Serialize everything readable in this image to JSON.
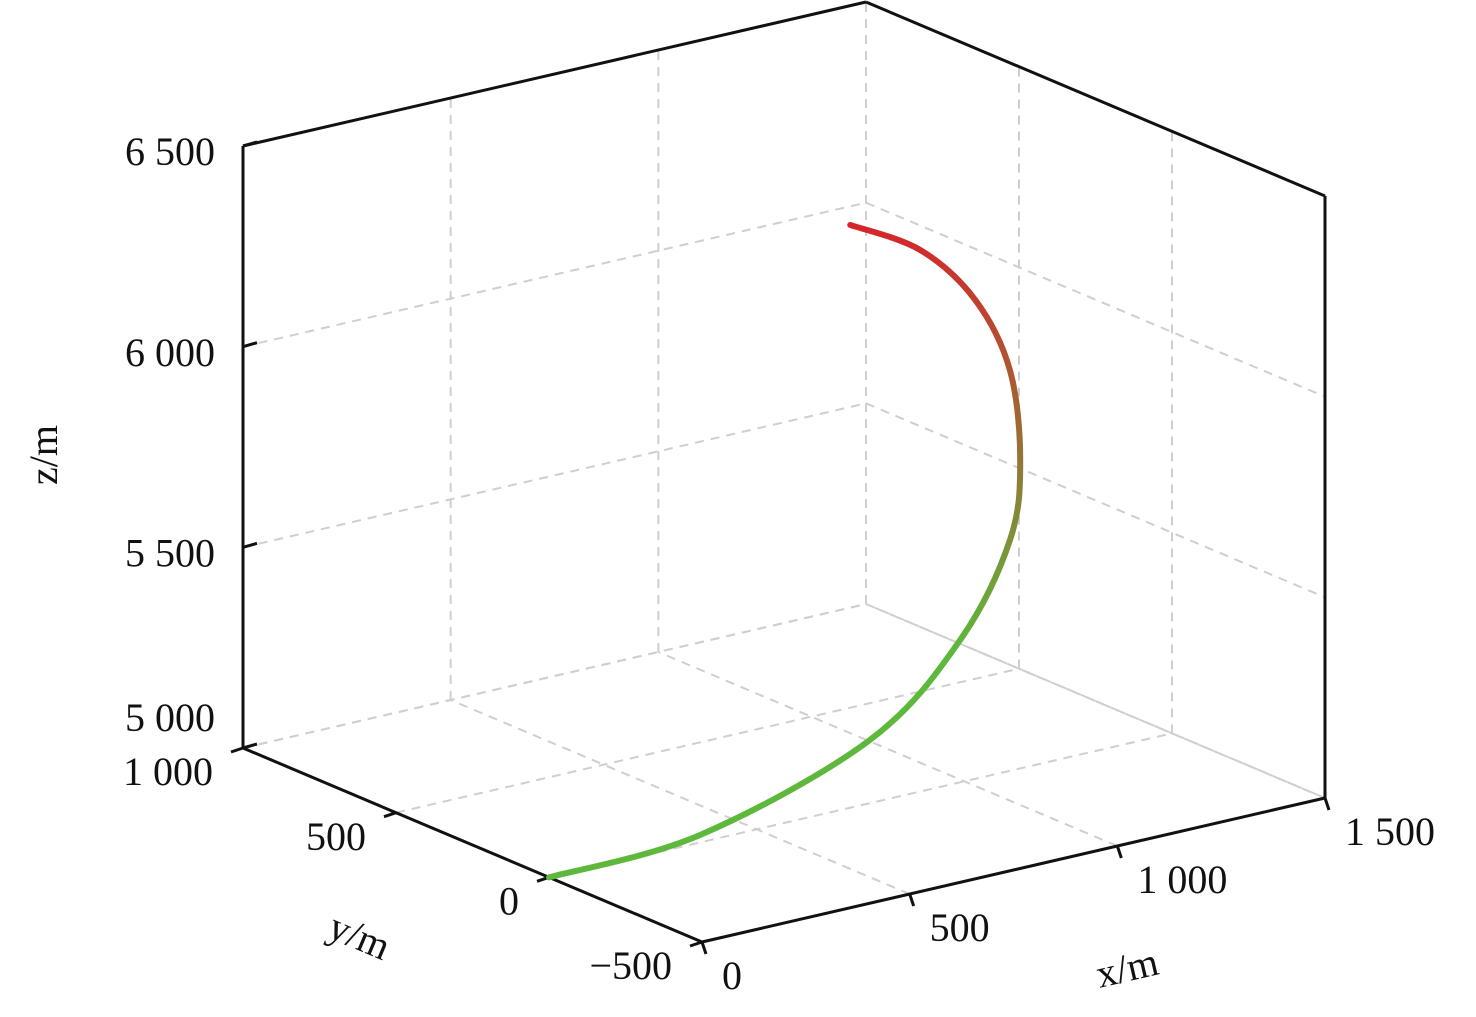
{
  "chart_data": {
    "type": "line3d",
    "xlabel": "x/m",
    "ylabel": "y/m",
    "zlabel": "z/m",
    "xlim": [
      0,
      1500
    ],
    "ylim": [
      -500,
      1000
    ],
    "zlim": [
      5000,
      6500
    ],
    "xticks": [
      0,
      500,
      {
        "value": 1000,
        "label": "1 000"
      },
      {
        "value": 1500,
        "label": "1 500"
      }
    ],
    "yticks": [
      {
        "value": -500,
        "label": "−500"
      },
      0,
      500,
      {
        "value": 1000,
        "label": "1 000"
      }
    ],
    "zticks": [
      {
        "value": 5000,
        "label": "5 000"
      },
      {
        "value": 5500,
        "label": "5 500"
      },
      {
        "value": 6000,
        "label": "6 000"
      },
      {
        "value": 6500,
        "label": "6 500"
      }
    ],
    "grid": true,
    "series": [
      {
        "colors": [
          "#5db83c",
          "#d7242c"
        ],
        "x": [
          0,
          332,
          813,
          1130,
          1339,
          1413,
          1433,
          1371,
          1218,
          950
        ],
        "y": [
          0,
          -43,
          55,
          190,
          311,
          378,
          439,
          468,
          440,
          305
        ],
        "z": [
          5000,
          5040,
          5130,
          5260,
          5420,
          5580,
          5780,
          5960,
          6130,
          6300
        ]
      }
    ]
  }
}
